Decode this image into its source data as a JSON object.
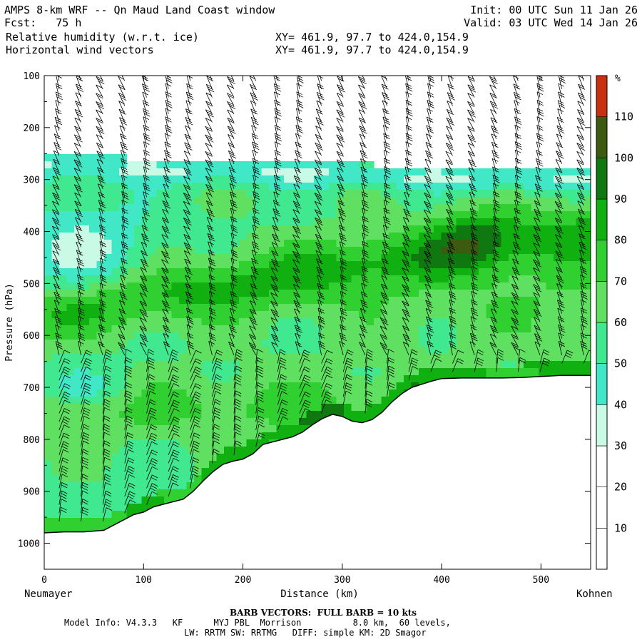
{
  "header": {
    "model_title": "AMPS 8-km WRF -- Qn Maud Land Coast window",
    "fcst_label": "Fcst:",
    "fcst_value": "75 h",
    "field1": "Relative humidity (w.r.t. ice)",
    "field2": "Horizontal wind vectors",
    "xy1": "XY= 461.9, 97.7 to 424.0,154.9",
    "xy2": "XY= 461.9, 97.7 to 424.0,154.9",
    "init": "Init: 00 UTC Sun 11 Jan 26",
    "valid": "Valid: 03 UTC Wed 14 Jan 26"
  },
  "chart_data": {
    "type": "heatmap",
    "title": "Relative humidity (w.r.t. ice) cross-section with horizontal wind vectors",
    "xlabel": "Distance (km)",
    "ylabel": "Pressure (hPa)",
    "xlim": [
      0,
      550
    ],
    "ylim": [
      1050,
      100
    ],
    "x_ticks": [
      0,
      100,
      200,
      300,
      400,
      500
    ],
    "y_ticks": [
      100,
      200,
      300,
      400,
      500,
      600,
      700,
      800,
      900,
      1000
    ],
    "start_label": "Neumayer",
    "end_label": "Kohnen",
    "colorbar": {
      "unit": "%",
      "levels": [
        10,
        20,
        30,
        40,
        50,
        60,
        70,
        80,
        90,
        100,
        110
      ],
      "colors": [
        "#ffffff",
        "#ffffff",
        "#ffffff",
        "#c8fae6",
        "#40e8c8",
        "#40e890",
        "#60e060",
        "#30d030",
        "#10b010",
        "#107810",
        "#3c5a10",
        "#c83010"
      ]
    },
    "terrain_profile": [
      [
        0,
        980
      ],
      [
        20,
        978
      ],
      [
        40,
        978
      ],
      [
        60,
        975
      ],
      [
        70,
        965
      ],
      [
        80,
        955
      ],
      [
        90,
        945
      ],
      [
        100,
        940
      ],
      [
        110,
        930
      ],
      [
        120,
        925
      ],
      [
        140,
        915
      ],
      [
        150,
        900
      ],
      [
        160,
        880
      ],
      [
        170,
        862
      ],
      [
        180,
        848
      ],
      [
        190,
        842
      ],
      [
        200,
        838
      ],
      [
        210,
        828
      ],
      [
        220,
        810
      ],
      [
        230,
        805
      ],
      [
        240,
        800
      ],
      [
        250,
        795
      ],
      [
        260,
        786
      ],
      [
        270,
        772
      ],
      [
        280,
        760
      ],
      [
        290,
        752
      ],
      [
        300,
        756
      ],
      [
        310,
        765
      ],
      [
        320,
        768
      ],
      [
        330,
        762
      ],
      [
        340,
        748
      ],
      [
        350,
        728
      ],
      [
        360,
        712
      ],
      [
        370,
        700
      ],
      [
        380,
        694
      ],
      [
        390,
        688
      ],
      [
        400,
        683
      ],
      [
        420,
        682
      ],
      [
        440,
        682
      ],
      [
        460,
        682
      ],
      [
        480,
        681
      ],
      [
        500,
        679
      ],
      [
        520,
        677
      ],
      [
        550,
        677
      ]
    ],
    "rh_top_boundary": [
      [
        0,
        260
      ],
      [
        50,
        262
      ],
      [
        100,
        265
      ],
      [
        150,
        268
      ],
      [
        200,
        270
      ],
      [
        250,
        272
      ],
      [
        300,
        275
      ],
      [
        350,
        279
      ],
      [
        400,
        282
      ],
      [
        450,
        285
      ],
      [
        500,
        285
      ],
      [
        550,
        284
      ]
    ],
    "wind_barb_units": "kts"
  },
  "footer": {
    "barb_note": "BARB VECTORS:  FULL BARB = 10 kts",
    "model_info": "Model Info: V4.3.3   KF      MYJ PBL  Morrison          8.0 km,  60 levels,",
    "model_info2": "LW: RRTM SW: RRTMG   DIFF: simple KM: 2D Smagor"
  }
}
